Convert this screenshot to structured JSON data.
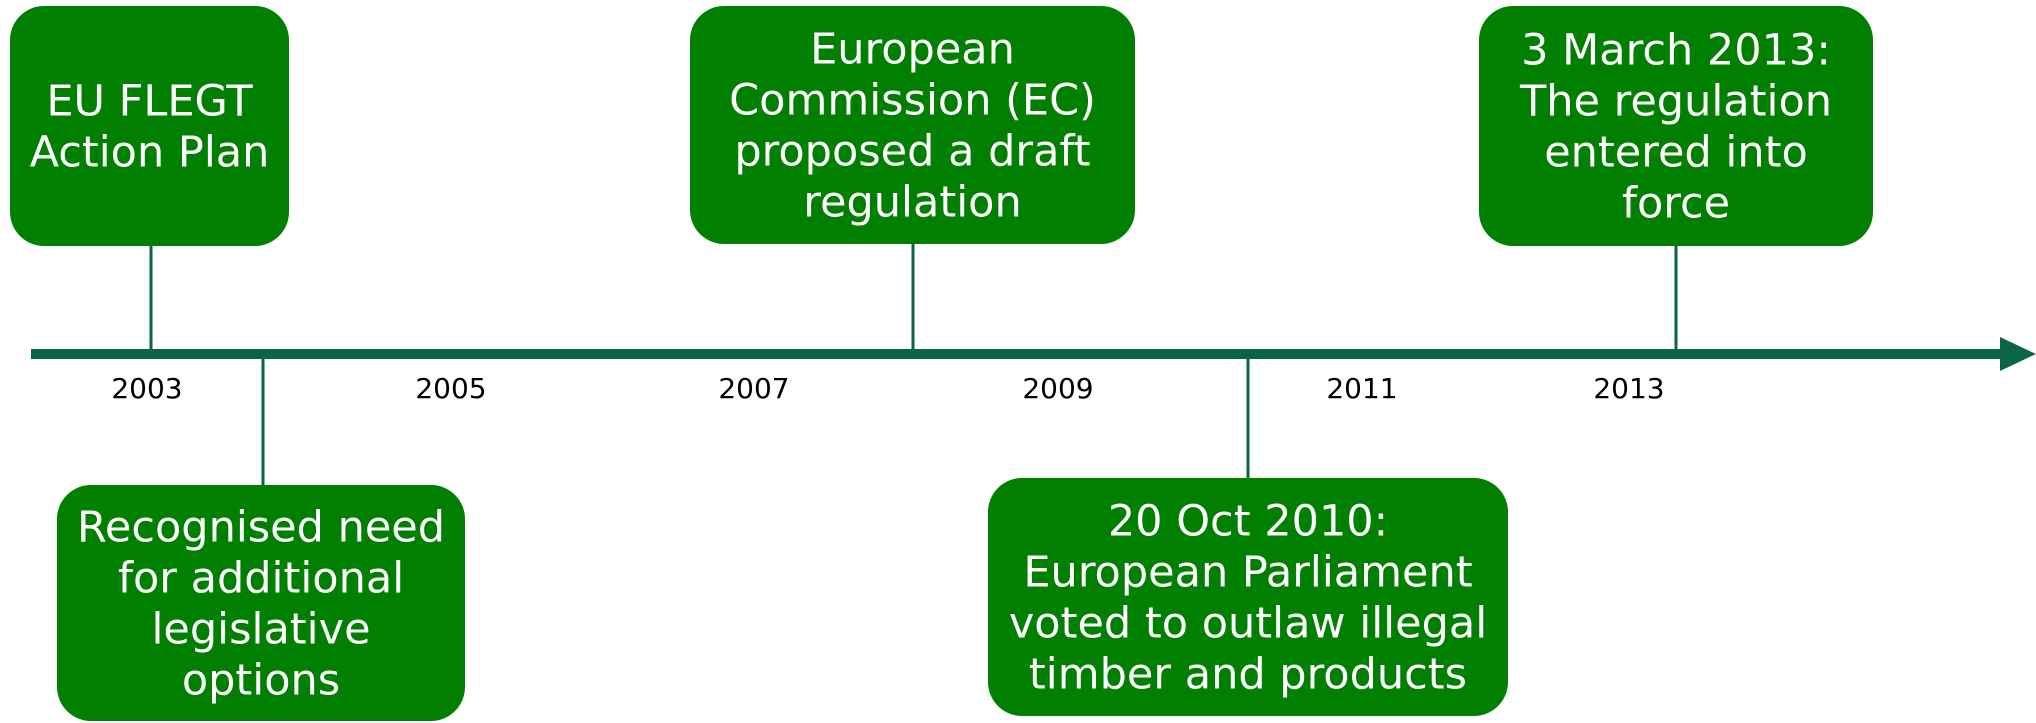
{
  "axis": {
    "years": [
      "2003",
      "2005",
      "2007",
      "2009",
      "2011",
      "2013"
    ]
  },
  "nodes": [
    {
      "lines": [
        "EU FLEGT",
        "Action Plan"
      ]
    },
    {
      "lines": [
        "Recognised need",
        "for additional",
        "legislative",
        "options"
      ]
    },
    {
      "lines": [
        "European",
        "Commission (EC)",
        "proposed a draft",
        "regulation"
      ]
    },
    {
      "lines": [
        "20 Oct 2010:",
        "European Parliament",
        "voted to outlaw illegal",
        "timber and products"
      ]
    },
    {
      "lines": [
        "3 March 2013:",
        "The regulation",
        "entered into",
        "force"
      ]
    }
  ]
}
